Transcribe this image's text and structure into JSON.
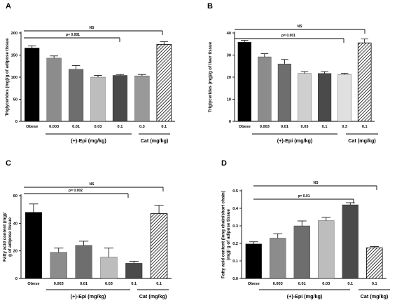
{
  "chart_data": [
    {
      "type": "bar",
      "panel_label": "A",
      "ylabel": "Triglycerides (mg)/g of adipose tissue",
      "ylim": [
        0,
        200
      ],
      "yticks": [
        0,
        50,
        100,
        150,
        200
      ],
      "categories": [
        "Obese",
        "0.003",
        "0.01",
        "0.03",
        "0.1",
        "0.3",
        "0.1"
      ],
      "values": [
        166,
        143,
        118,
        100,
        104,
        103,
        174
      ],
      "errors": [
        5,
        5,
        8,
        4,
        2,
        3,
        6
      ],
      "colors": [
        "#000000",
        "#8c8c8c",
        "#6e6e6e",
        "#bdbdbd",
        "#4a4a4a",
        "#999999",
        "hatch"
      ],
      "group_labels": [
        "(+)-Epi (mg/kg)",
        "Cat (mg/kg)"
      ],
      "annotations": [
        "NS",
        "p= 0.001"
      ]
    },
    {
      "type": "bar",
      "panel_label": "B",
      "ylabel": "Triglycerides (mg)/g of liver  tissue",
      "ylim": [
        0,
        40
      ],
      "yticks": [
        0,
        10,
        20,
        30,
        40
      ],
      "categories": [
        "Obese",
        "0.003",
        "0.01",
        "0.03",
        "0.1",
        "0.3",
        "0.1"
      ],
      "values": [
        35.8,
        29.2,
        26,
        21.7,
        21.7,
        21.2,
        35.5
      ],
      "errors": [
        0.8,
        1.4,
        2,
        0.8,
        0.8,
        0.5,
        1.8
      ],
      "colors": [
        "#000000",
        "#8c8c8c",
        "#6e6e6e",
        "#cfcfcf",
        "#4a4a4a",
        "#e0e0e0",
        "hatch"
      ],
      "group_labels": [
        "(+)-Epi (mg/kg)",
        "Cat (mg/kg)"
      ],
      "annotations": [
        "NS",
        "p= 0.001"
      ]
    },
    {
      "type": "bar",
      "panel_label": "C",
      "ylabel": "Fatty acid content (mg)/ g of adipose tissue",
      "ylim": [
        0,
        60
      ],
      "yticks": [
        0,
        20,
        40,
        60
      ],
      "categories": [
        "Obese",
        "0.003",
        "0.01",
        "0.03",
        "0.1",
        "0.1"
      ],
      "values": [
        48,
        19,
        24,
        15.5,
        11,
        47
      ],
      "errors": [
        6,
        3,
        3,
        6.5,
        1.5,
        6
      ],
      "colors": [
        "#000000",
        "#8c8c8c",
        "#6e6e6e",
        "#bdbdbd",
        "#4a4a4a",
        "hatch"
      ],
      "group_labels": [
        "(+)-Epi (mg/kg)",
        "Cat (mg/kg)"
      ],
      "annotations": [
        "NS",
        "p= 0.002"
      ]
    },
    {
      "type": "bar",
      "panel_label": "D",
      "ylabel": "Fatty acid content (long chain/short chain) (mg)/ g of adipose tissue",
      "ylim": [
        0,
        0.5
      ],
      "yticks": [
        "0.0",
        "0.1",
        "0.2",
        "0.3",
        "0.4",
        "0.5"
      ],
      "categories": [
        "Obese",
        "0.003",
        "0.01",
        "0.03",
        "0.1",
        "0.1"
      ],
      "values": [
        0.197,
        0.23,
        0.3,
        0.33,
        0.42,
        0.175
      ],
      "errors": [
        0.012,
        0.025,
        0.028,
        0.018,
        0.012,
        0.007
      ],
      "colors": [
        "#000000",
        "#8c8c8c",
        "#6e6e6e",
        "#bdbdbd",
        "#4a4a4a",
        "hatch"
      ],
      "group_labels": [
        "(+)-Epi (mg/kg)",
        "Cat (mg/kg)"
      ],
      "annotations": [
        "NS",
        "p= 0.01"
      ]
    }
  ]
}
